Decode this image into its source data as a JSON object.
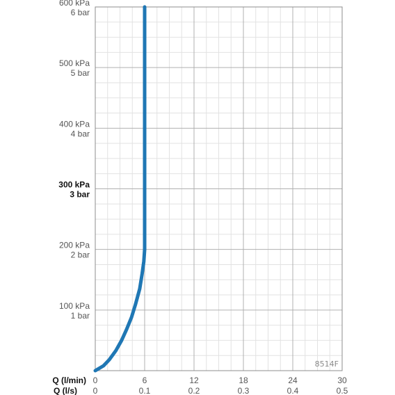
{
  "chart_data": {
    "type": "line",
    "code": "8514F",
    "x_primary": {
      "label": "Q (l/min)",
      "ticks": [
        0,
        6,
        12,
        18,
        24,
        30
      ],
      "tick_labels": [
        "0",
        "6",
        "12",
        "18",
        "24",
        "30"
      ],
      "range": [
        0,
        30
      ]
    },
    "x_secondary": {
      "label": "Q (l/s)",
      "tick_labels": [
        "0",
        "0.1",
        "0.2",
        "0.3",
        "0.4",
        "0.5"
      ]
    },
    "y": {
      "range": [
        0,
        600
      ],
      "unit": "kPa",
      "ticks": [
        {
          "value": 100,
          "kpa": "100 kPa",
          "bar": "1 bar",
          "bold": false
        },
        {
          "value": 200,
          "kpa": "200 kPa",
          "bar": "2 bar",
          "bold": false
        },
        {
          "value": 300,
          "kpa": "300 kPa",
          "bar": "3 bar",
          "bold": true
        },
        {
          "value": 400,
          "kpa": "400 kPa",
          "bar": "4 bar",
          "bold": false
        },
        {
          "value": 500,
          "kpa": "500 kPa",
          "bar": "5 bar",
          "bold": false
        },
        {
          "value": 600,
          "kpa": "600 kPa",
          "bar": "6 bar",
          "bold": false
        }
      ]
    },
    "grid": true,
    "series": [
      {
        "color": "#1f77b4",
        "points": [
          [
            0,
            0
          ],
          [
            1,
            8
          ],
          [
            1.7,
            18
          ],
          [
            2.5,
            33
          ],
          [
            3.2,
            50
          ],
          [
            3.8,
            68
          ],
          [
            4.4,
            88
          ],
          [
            4.9,
            110
          ],
          [
            5.4,
            135
          ],
          [
            5.7,
            160
          ],
          [
            5.9,
            180
          ],
          [
            6,
            200
          ],
          [
            6,
            300
          ],
          [
            6,
            400
          ],
          [
            6,
            500
          ],
          [
            6,
            600
          ]
        ]
      }
    ]
  }
}
